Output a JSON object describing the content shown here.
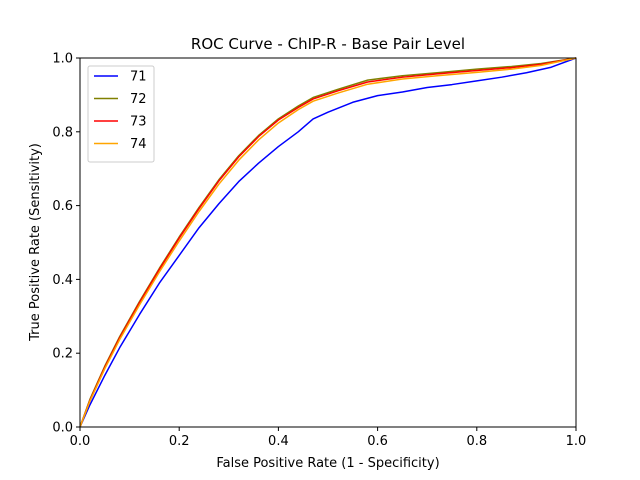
{
  "chart_data": {
    "type": "line",
    "title": "ROC Curve - ChIP-R - Base Pair Level",
    "xlabel": "False Positive Rate (1 - Specificity)",
    "ylabel": "True Positive Rate (Sensitivity)",
    "xlim": [
      0,
      1
    ],
    "ylim": [
      0,
      1
    ],
    "xticks": [
      "0.0",
      "0.2",
      "0.4",
      "0.6",
      "0.8",
      "1.0"
    ],
    "yticks": [
      "0.0",
      "0.2",
      "0.4",
      "0.6",
      "0.8",
      "1.0"
    ],
    "grid": false,
    "legend_position": "top-left",
    "series": [
      {
        "name": "71",
        "color": "#0000ff",
        "points": [
          [
            0,
            0
          ],
          [
            0.02,
            0.06
          ],
          [
            0.05,
            0.14
          ],
          [
            0.08,
            0.215
          ],
          [
            0.12,
            0.305
          ],
          [
            0.16,
            0.39
          ],
          [
            0.2,
            0.465
          ],
          [
            0.24,
            0.54
          ],
          [
            0.28,
            0.605
          ],
          [
            0.32,
            0.665
          ],
          [
            0.36,
            0.715
          ],
          [
            0.4,
            0.76
          ],
          [
            0.44,
            0.8
          ],
          [
            0.47,
            0.835
          ],
          [
            0.5,
            0.853
          ],
          [
            0.55,
            0.88
          ],
          [
            0.6,
            0.898
          ],
          [
            0.65,
            0.908
          ],
          [
            0.7,
            0.92
          ],
          [
            0.75,
            0.928
          ],
          [
            0.8,
            0.938
          ],
          [
            0.85,
            0.948
          ],
          [
            0.9,
            0.96
          ],
          [
            0.95,
            0.975
          ],
          [
            1,
            1
          ]
        ]
      },
      {
        "name": "72",
        "color": "#808000",
        "points": [
          [
            0,
            0
          ],
          [
            0.02,
            0.075
          ],
          [
            0.05,
            0.165
          ],
          [
            0.08,
            0.245
          ],
          [
            0.12,
            0.34
          ],
          [
            0.16,
            0.43
          ],
          [
            0.2,
            0.515
          ],
          [
            0.24,
            0.595
          ],
          [
            0.28,
            0.67
          ],
          [
            0.32,
            0.735
          ],
          [
            0.36,
            0.79
          ],
          [
            0.4,
            0.835
          ],
          [
            0.44,
            0.87
          ],
          [
            0.47,
            0.893
          ],
          [
            0.52,
            0.915
          ],
          [
            0.58,
            0.94
          ],
          [
            0.65,
            0.952
          ],
          [
            0.72,
            0.96
          ],
          [
            0.8,
            0.97
          ],
          [
            0.87,
            0.977
          ],
          [
            0.93,
            0.985
          ],
          [
            1,
            1
          ]
        ]
      },
      {
        "name": "73",
        "color": "#ff0000",
        "points": [
          [
            0,
            0
          ],
          [
            0.02,
            0.072
          ],
          [
            0.05,
            0.162
          ],
          [
            0.08,
            0.242
          ],
          [
            0.12,
            0.337
          ],
          [
            0.16,
            0.427
          ],
          [
            0.2,
            0.512
          ],
          [
            0.24,
            0.592
          ],
          [
            0.28,
            0.667
          ],
          [
            0.32,
            0.732
          ],
          [
            0.36,
            0.787
          ],
          [
            0.4,
            0.832
          ],
          [
            0.44,
            0.866
          ],
          [
            0.47,
            0.889
          ],
          [
            0.52,
            0.911
          ],
          [
            0.58,
            0.935
          ],
          [
            0.65,
            0.948
          ],
          [
            0.72,
            0.957
          ],
          [
            0.8,
            0.966
          ],
          [
            0.87,
            0.974
          ],
          [
            0.93,
            0.983
          ],
          [
            1,
            1
          ]
        ]
      },
      {
        "name": "74",
        "color": "#ffa500",
        "points": [
          [
            0,
            0
          ],
          [
            0.02,
            0.07
          ],
          [
            0.05,
            0.158
          ],
          [
            0.08,
            0.237
          ],
          [
            0.12,
            0.331
          ],
          [
            0.16,
            0.42
          ],
          [
            0.2,
            0.504
          ],
          [
            0.24,
            0.584
          ],
          [
            0.28,
            0.658
          ],
          [
            0.32,
            0.723
          ],
          [
            0.36,
            0.778
          ],
          [
            0.4,
            0.824
          ],
          [
            0.44,
            0.86
          ],
          [
            0.47,
            0.883
          ],
          [
            0.52,
            0.905
          ],
          [
            0.58,
            0.929
          ],
          [
            0.65,
            0.943
          ],
          [
            0.72,
            0.952
          ],
          [
            0.8,
            0.961
          ],
          [
            0.87,
            0.97
          ],
          [
            0.93,
            0.98
          ],
          [
            1,
            1
          ]
        ]
      }
    ]
  }
}
